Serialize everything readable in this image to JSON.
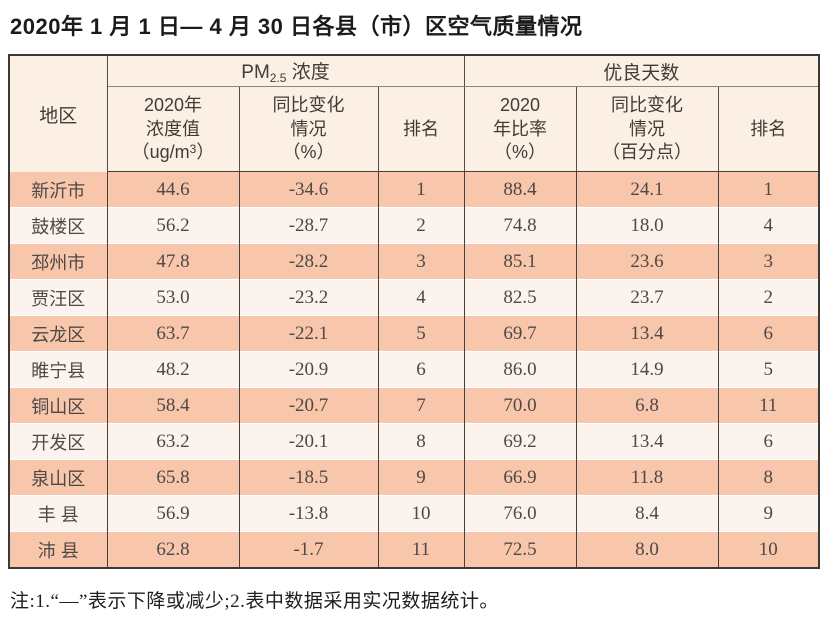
{
  "page": {
    "title": "2020年 1 月 1 日— 4 月 30 日各县（市）区空气质量情况",
    "note": "注:1.“—”表示下降或减少;2.表中数据采用实况数据统计。"
  },
  "colors": {
    "row_salmon": "#f7c6ab",
    "row_light": "#fbf3ee",
    "header_cream": "#fbf0e3",
    "border_dark": "#3b3835"
  },
  "table": {
    "header": {
      "region": "地区",
      "pm_group": {
        "prefix": "PM",
        "sub": "2.5",
        "suffix": " 浓度"
      },
      "good_days": "优良天数",
      "conc": {
        "lines": "2020年\n浓度值",
        "unit_pre": "（ug/m",
        "unit_sup": "3",
        "unit_post": "）"
      },
      "pm_yoy": "同比变化\n情况\n（%）",
      "pm_rank": "排名",
      "ratio": "2020\n年比率\n（%）",
      "gd_yoy": "同比变化\n情况\n（百分点）",
      "gd_rank": "排名"
    },
    "rows": [
      {
        "region": "新沂市",
        "pm_value": "44.6",
        "pm_yoy": "-34.6",
        "pm_rank": "1",
        "gd_ratio": "88.4",
        "gd_yoy": "24.1",
        "gd_rank": "1"
      },
      {
        "region": "鼓楼区",
        "pm_value": "56.2",
        "pm_yoy": "-28.7",
        "pm_rank": "2",
        "gd_ratio": "74.8",
        "gd_yoy": "18.0",
        "gd_rank": "4"
      },
      {
        "region": "邳州市",
        "pm_value": "47.8",
        "pm_yoy": "-28.2",
        "pm_rank": "3",
        "gd_ratio": "85.1",
        "gd_yoy": "23.6",
        "gd_rank": "3"
      },
      {
        "region": "贾汪区",
        "pm_value": "53.0",
        "pm_yoy": "-23.2",
        "pm_rank": "4",
        "gd_ratio": "82.5",
        "gd_yoy": "23.7",
        "gd_rank": "2"
      },
      {
        "region": "云龙区",
        "pm_value": "63.7",
        "pm_yoy": "-22.1",
        "pm_rank": "5",
        "gd_ratio": "69.7",
        "gd_yoy": "13.4",
        "gd_rank": "6"
      },
      {
        "region": "睢宁县",
        "pm_value": "48.2",
        "pm_yoy": "-20.9",
        "pm_rank": "6",
        "gd_ratio": "86.0",
        "gd_yoy": "14.9",
        "gd_rank": "5"
      },
      {
        "region": "铜山区",
        "pm_value": "58.4",
        "pm_yoy": "-20.7",
        "pm_rank": "7",
        "gd_ratio": "70.0",
        "gd_yoy": "6.8",
        "gd_rank": "11"
      },
      {
        "region": "开发区",
        "pm_value": "63.2",
        "pm_yoy": "-20.1",
        "pm_rank": "8",
        "gd_ratio": "69.2",
        "gd_yoy": "13.4",
        "gd_rank": "6"
      },
      {
        "region": "泉山区",
        "pm_value": "65.8",
        "pm_yoy": "-18.5",
        "pm_rank": "9",
        "gd_ratio": "66.9",
        "gd_yoy": "11.8",
        "gd_rank": "8"
      },
      {
        "region": "丰 县",
        "pm_value": "56.9",
        "pm_yoy": "-13.8",
        "pm_rank": "10",
        "gd_ratio": "76.0",
        "gd_yoy": "8.4",
        "gd_rank": "9"
      },
      {
        "region": "沛 县",
        "pm_value": "62.8",
        "pm_yoy": "-1.7",
        "pm_rank": "11",
        "gd_ratio": "72.5",
        "gd_yoy": "8.0",
        "gd_rank": "10"
      }
    ]
  }
}
